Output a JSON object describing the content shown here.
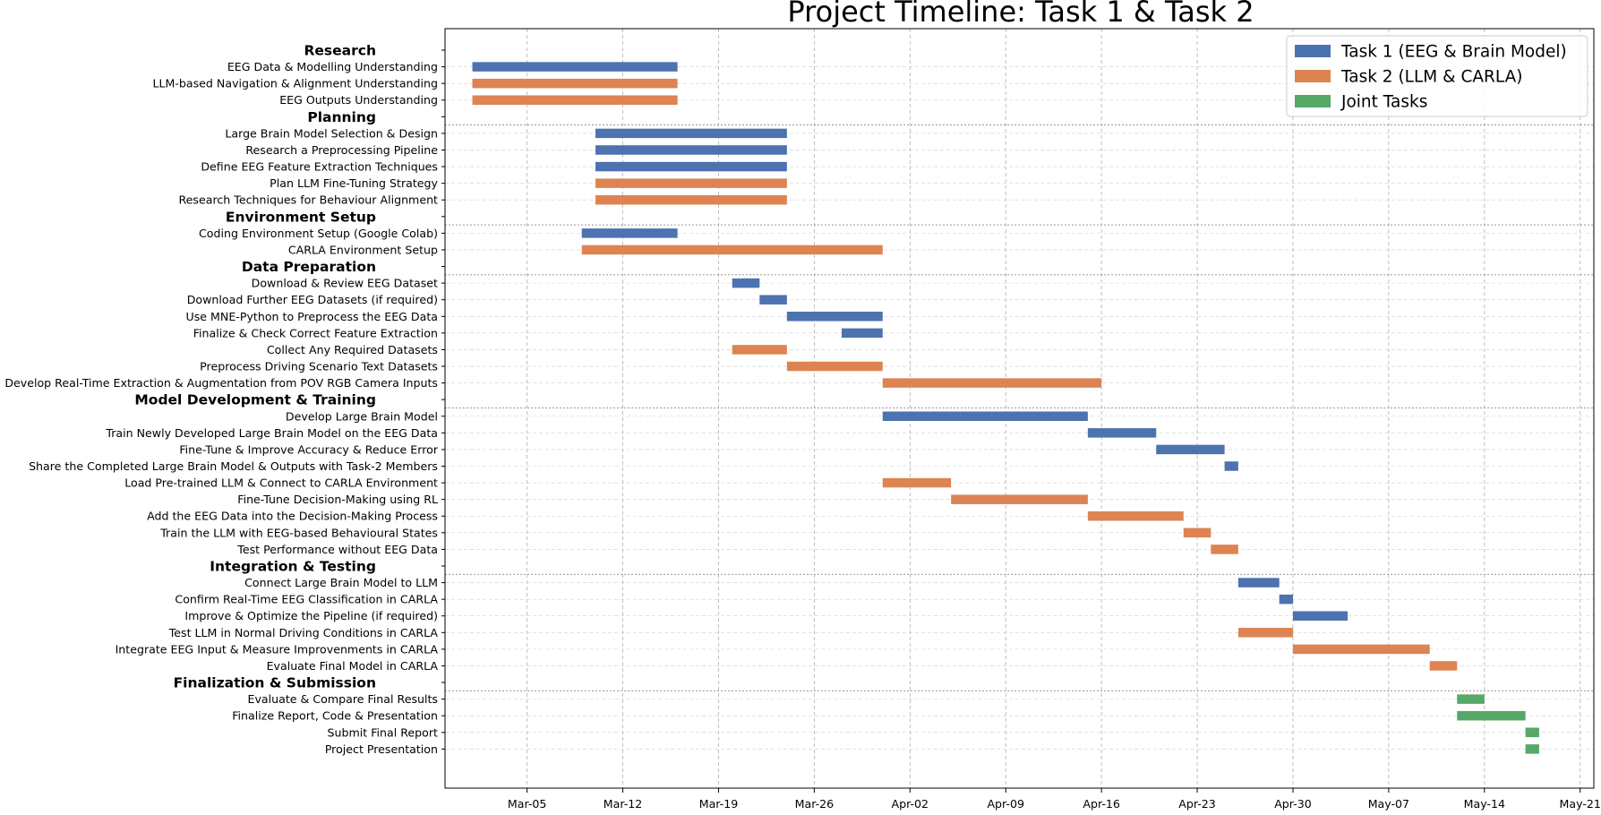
{
  "chart_data": {
    "type": "gantt",
    "title": "Project Timeline: Task 1 & Task 2",
    "xlabel": "",
    "ylabel": "",
    "x_range": [
      "2025-02-27",
      "2025-05-22"
    ],
    "x_ticks": [
      {
        "date": "2025-03-05",
        "label": "Mar-05"
      },
      {
        "date": "2025-03-12",
        "label": "Mar-12"
      },
      {
        "date": "2025-03-19",
        "label": "Mar-19"
      },
      {
        "date": "2025-03-26",
        "label": "Mar-26"
      },
      {
        "date": "2025-04-02",
        "label": "Apr-02"
      },
      {
        "date": "2025-04-09",
        "label": "Apr-09"
      },
      {
        "date": "2025-04-16",
        "label": "Apr-16"
      },
      {
        "date": "2025-04-23",
        "label": "Apr-23"
      },
      {
        "date": "2025-04-30",
        "label": "Apr-30"
      },
      {
        "date": "2025-05-07",
        "label": "May-07"
      },
      {
        "date": "2025-05-14",
        "label": "May-14"
      },
      {
        "date": "2025-05-21",
        "label": "May-21"
      }
    ],
    "grid": true,
    "legend_position": "top-right",
    "series": [
      {
        "key": "t1",
        "name": "Task 1 (EEG & Brain Model)",
        "color": "#4c72b0"
      },
      {
        "key": "t2",
        "name": "Task 2 (LLM & CARLA)",
        "color": "#dd8452"
      },
      {
        "key": "joint",
        "name": "Joint Tasks",
        "color": "#55a868"
      }
    ],
    "rows": [
      {
        "kind": "section",
        "label": "Research"
      },
      {
        "kind": "task",
        "label": "EEG Data & Modelling Understanding",
        "series": "t1",
        "start": "2025-03-01",
        "end": "2025-03-16"
      },
      {
        "kind": "task",
        "label": "LLM-based Navigation & Alignment Understanding",
        "series": "t2",
        "start": "2025-03-01",
        "end": "2025-03-16"
      },
      {
        "kind": "task",
        "label": "EEG Outputs Understanding",
        "series": "t2",
        "start": "2025-03-01",
        "end": "2025-03-16"
      },
      {
        "kind": "section",
        "label": "Planning"
      },
      {
        "kind": "task",
        "label": "Large Brain Model Selection & Design",
        "series": "t1",
        "start": "2025-03-10",
        "end": "2025-03-24"
      },
      {
        "kind": "task",
        "label": "Research a Preprocessing Pipeline",
        "series": "t1",
        "start": "2025-03-10",
        "end": "2025-03-24"
      },
      {
        "kind": "task",
        "label": "Define EEG Feature Extraction Techniques",
        "series": "t1",
        "start": "2025-03-10",
        "end": "2025-03-24"
      },
      {
        "kind": "task",
        "label": "Plan LLM Fine-Tuning Strategy",
        "series": "t2",
        "start": "2025-03-10",
        "end": "2025-03-24"
      },
      {
        "kind": "task",
        "label": "Research Techniques for Behaviour Alignment",
        "series": "t2",
        "start": "2025-03-10",
        "end": "2025-03-24"
      },
      {
        "kind": "section",
        "label": "Environment Setup"
      },
      {
        "kind": "task",
        "label": "Coding Environment Setup (Google Colab)",
        "series": "t1",
        "start": "2025-03-09",
        "end": "2025-03-16"
      },
      {
        "kind": "task",
        "label": "CARLA Environment Setup",
        "series": "t2",
        "start": "2025-03-09",
        "end": "2025-03-31"
      },
      {
        "kind": "section",
        "label": "Data Preparation"
      },
      {
        "kind": "task",
        "label": "Download & Review EEG Dataset",
        "series": "t1",
        "start": "2025-03-20",
        "end": "2025-03-22"
      },
      {
        "kind": "task",
        "label": "Download Further EEG Datasets (if required)",
        "series": "t1",
        "start": "2025-03-22",
        "end": "2025-03-24"
      },
      {
        "kind": "task",
        "label": "Use MNE-Python to Preprocess the EEG Data",
        "series": "t1",
        "start": "2025-03-24",
        "end": "2025-03-31"
      },
      {
        "kind": "task",
        "label": "Finalize & Check Correct Feature Extraction",
        "series": "t1",
        "start": "2025-03-28",
        "end": "2025-03-31"
      },
      {
        "kind": "task",
        "label": "Collect Any Required Datasets",
        "series": "t2",
        "start": "2025-03-20",
        "end": "2025-03-24"
      },
      {
        "kind": "task",
        "label": "Preprocess Driving Scenario Text Datasets",
        "series": "t2",
        "start": "2025-03-24",
        "end": "2025-03-31"
      },
      {
        "kind": "task",
        "label": "Develop Real-Time Extraction & Augmentation from POV RGB Camera Inputs",
        "series": "t2",
        "start": "2025-03-31",
        "end": "2025-04-16"
      },
      {
        "kind": "section",
        "label": "Model Development & Training"
      },
      {
        "kind": "task",
        "label": "Develop Large Brain Model",
        "series": "t1",
        "start": "2025-03-31",
        "end": "2025-04-15"
      },
      {
        "kind": "task",
        "label": "Train Newly Developed Large Brain Model on the EEG Data",
        "series": "t1",
        "start": "2025-04-15",
        "end": "2025-04-20"
      },
      {
        "kind": "task",
        "label": "Fine-Tune & Improve Accuracy & Reduce Error",
        "series": "t1",
        "start": "2025-04-20",
        "end": "2025-04-25"
      },
      {
        "kind": "task",
        "label": "Share the Completed Large Brain Model & Outputs with Task-2 Members",
        "series": "t1",
        "start": "2025-04-25",
        "end": "2025-04-26"
      },
      {
        "kind": "task",
        "label": "Load Pre-trained LLM & Connect to CARLA Environment",
        "series": "t2",
        "start": "2025-03-31",
        "end": "2025-04-05"
      },
      {
        "kind": "task",
        "label": "Fine-Tune Decision-Making using RL",
        "series": "t2",
        "start": "2025-04-05",
        "end": "2025-04-15"
      },
      {
        "kind": "task",
        "label": "Add the EEG Data into the Decision-Making Process",
        "series": "t2",
        "start": "2025-04-15",
        "end": "2025-04-22"
      },
      {
        "kind": "task",
        "label": "Train the LLM with EEG-based Behavioural States",
        "series": "t2",
        "start": "2025-04-22",
        "end": "2025-04-24"
      },
      {
        "kind": "task",
        "label": "Test Performance without EEG Data",
        "series": "t2",
        "start": "2025-04-24",
        "end": "2025-04-26"
      },
      {
        "kind": "section",
        "label": "Integration & Testing"
      },
      {
        "kind": "task",
        "label": "Connect Large Brain Model to LLM",
        "series": "t1",
        "start": "2025-04-26",
        "end": "2025-04-29"
      },
      {
        "kind": "task",
        "label": "Confirm Real-Time EEG Classification in CARLA",
        "series": "t1",
        "start": "2025-04-29",
        "end": "2025-04-30"
      },
      {
        "kind": "task",
        "label": "Improve & Optimize the Pipeline (if required)",
        "series": "t1",
        "start": "2025-04-30",
        "end": "2025-05-04"
      },
      {
        "kind": "task",
        "label": "Test LLM in Normal Driving Conditions in CARLA",
        "series": "t2",
        "start": "2025-04-26",
        "end": "2025-04-30"
      },
      {
        "kind": "task",
        "label": "Integrate EEG Input & Measure Improvenments in CARLA",
        "series": "t2",
        "start": "2025-04-30",
        "end": "2025-05-10"
      },
      {
        "kind": "task",
        "label": "Evaluate Final Model in CARLA",
        "series": "t2",
        "start": "2025-05-10",
        "end": "2025-05-12"
      },
      {
        "kind": "section",
        "label": "Finalization & Submission"
      },
      {
        "kind": "task",
        "label": "Evaluate & Compare Final Results",
        "series": "joint",
        "start": "2025-05-12",
        "end": "2025-05-14"
      },
      {
        "kind": "task",
        "label": "Finalize Report, Code & Presentation",
        "series": "joint",
        "start": "2025-05-12",
        "end": "2025-05-17"
      },
      {
        "kind": "task",
        "label": "Submit Final Report",
        "series": "joint",
        "start": "2025-05-17",
        "end": "2025-05-18"
      },
      {
        "kind": "task",
        "label": "Project Presentation",
        "series": "joint",
        "start": "2025-05-17",
        "end": "2025-05-18"
      }
    ]
  }
}
